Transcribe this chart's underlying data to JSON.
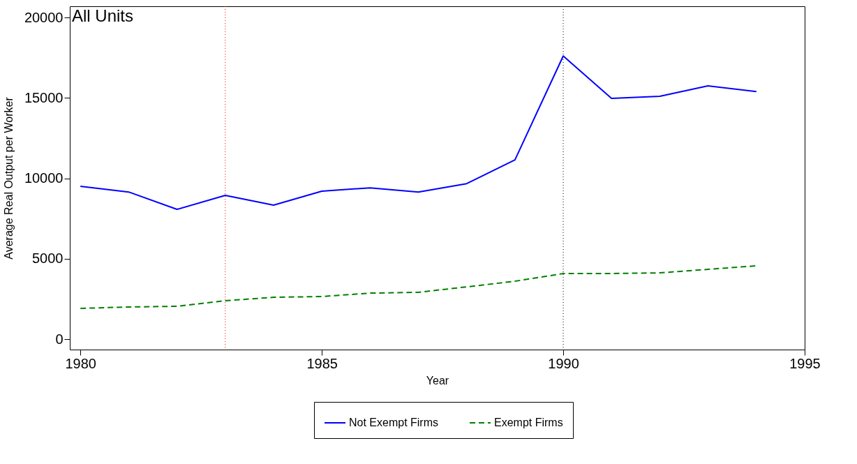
{
  "chart_data": {
    "type": "line",
    "xlabel": "Year",
    "ylabel": "Average Real Output per Worker",
    "annotations": [
      "All Units"
    ],
    "x": [
      1980,
      1981,
      1982,
      1983,
      1984,
      1985,
      1986,
      1987,
      1988,
      1989,
      1990,
      1991,
      1992,
      1993,
      1994
    ],
    "series": [
      {
        "name": "Not Exempt Firms",
        "color": "#0000ff",
        "line_style": "solid",
        "values": [
          9500,
          9150,
          8070,
          8940,
          8330,
          9200,
          9410,
          9150,
          9670,
          11150,
          17610,
          14970,
          15100,
          15750,
          15400
        ]
      },
      {
        "name": "Exempt Firms",
        "color": "#008000",
        "line_style": "dashed",
        "values": [
          1910,
          2000,
          2040,
          2390,
          2600,
          2650,
          2860,
          2910,
          3250,
          3600,
          4080,
          4080,
          4120,
          4340,
          4560
        ]
      }
    ],
    "xlim": [
      1979.78,
      1995
    ],
    "xticks": [
      1980,
      1985,
      1990,
      1995
    ],
    "ylim": [
      -650,
      20700
    ],
    "yticks": [
      0,
      5000,
      10000,
      15000,
      20000
    ],
    "ref_lines": [
      {
        "axis": "x",
        "value": 1983,
        "color": "#ff0000",
        "line_style": "dotted"
      },
      {
        "axis": "x",
        "value": 1990,
        "color": "#000000",
        "line_style": "dotted"
      }
    ],
    "grid": false,
    "legend": "bottom"
  }
}
